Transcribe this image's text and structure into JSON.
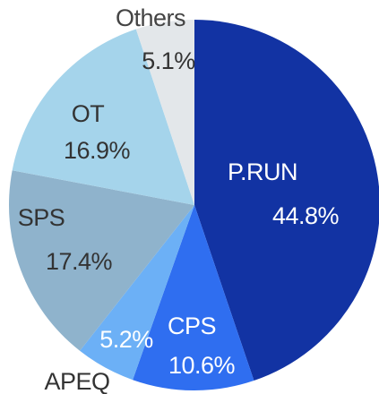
{
  "chart_data": {
    "type": "pie",
    "categories": [
      "P.RUN",
      "CPS",
      "APEQ",
      "SPS",
      "OT",
      "Others"
    ],
    "values": [
      44.8,
      10.6,
      5.2,
      17.4,
      16.9,
      5.1
    ],
    "value_labels": [
      "44.8%",
      "10.6%",
      "5.2%",
      "17.4%",
      "16.9%",
      "5.1%"
    ],
    "colors": [
      "#1233a3",
      "#2f6ef0",
      "#6cb0f6",
      "#8fb3cc",
      "#a5d4eb",
      "#e3e7ea"
    ]
  }
}
